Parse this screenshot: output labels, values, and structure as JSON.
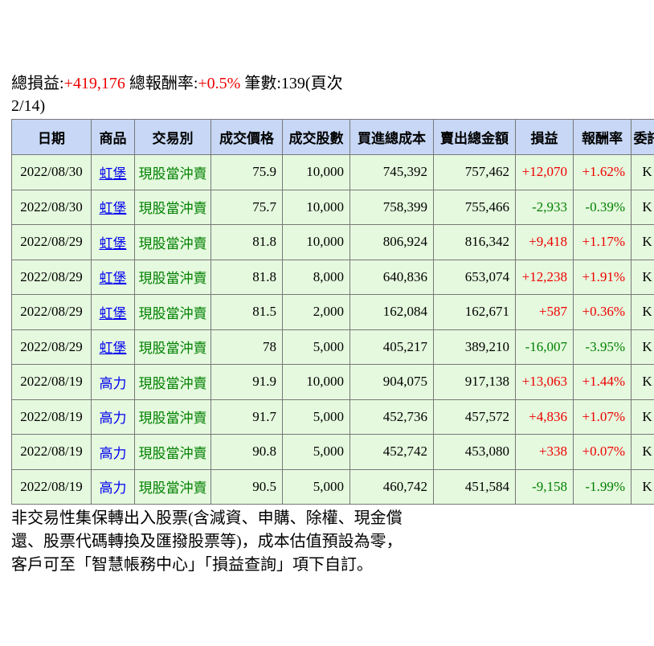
{
  "summary": {
    "label_pl": "總損益:",
    "value_pl": "+419,176",
    "label_ret": " 總報酬率:",
    "value_ret": "+0.5%",
    "label_count": " 筆數:139(頁次 2/14)"
  },
  "colors": {
    "positive": "#ee0000",
    "negative": "#008000",
    "link": "#0000ee",
    "header_bg": "#c7d7f5",
    "row_bg": "#e5f9de"
  },
  "table": {
    "columns": [
      "日期",
      "商品",
      "交易別",
      "成交價格",
      "成交股數",
      "買進總成本",
      "賣出總金額",
      "損益",
      "報酬率",
      "委託"
    ],
    "rows": [
      {
        "date": "2022/08/30",
        "product": "虹堡",
        "underline": true,
        "type": "現股當沖賣",
        "price": "75.9",
        "shares": "10,000",
        "cost": "745,392",
        "amount": "757,462",
        "pl": "+12,070",
        "ret": "+1.62%",
        "source": "K"
      },
      {
        "date": "2022/08/30",
        "product": "虹堡",
        "underline": true,
        "type": "現股當沖賣",
        "price": "75.7",
        "shares": "10,000",
        "cost": "758,399",
        "amount": "755,466",
        "pl": "-2,933",
        "ret": "-0.39%",
        "source": "K"
      },
      {
        "date": "2022/08/29",
        "product": "虹堡",
        "underline": true,
        "type": "現股當沖賣",
        "price": "81.8",
        "shares": "10,000",
        "cost": "806,924",
        "amount": "816,342",
        "pl": "+9,418",
        "ret": "+1.17%",
        "source": "K"
      },
      {
        "date": "2022/08/29",
        "product": "虹堡",
        "underline": true,
        "type": "現股當沖賣",
        "price": "81.8",
        "shares": "8,000",
        "cost": "640,836",
        "amount": "653,074",
        "pl": "+12,238",
        "ret": "+1.91%",
        "source": "K"
      },
      {
        "date": "2022/08/29",
        "product": "虹堡",
        "underline": true,
        "type": "現股當沖賣",
        "price": "81.5",
        "shares": "2,000",
        "cost": "162,084",
        "amount": "162,671",
        "pl": "+587",
        "ret": "+0.36%",
        "source": "K"
      },
      {
        "date": "2022/08/29",
        "product": "虹堡",
        "underline": true,
        "type": "現股當沖賣",
        "price": "78",
        "shares": "5,000",
        "cost": "405,217",
        "amount": "389,210",
        "pl": "-16,007",
        "ret": "-3.95%",
        "source": "K"
      },
      {
        "date": "2022/08/19",
        "product": "高力",
        "underline": false,
        "type": "現股當沖賣",
        "price": "91.9",
        "shares": "10,000",
        "cost": "904,075",
        "amount": "917,138",
        "pl": "+13,063",
        "ret": "+1.44%",
        "source": "K"
      },
      {
        "date": "2022/08/19",
        "product": "高力",
        "underline": false,
        "type": "現股當沖賣",
        "price": "91.7",
        "shares": "5,000",
        "cost": "452,736",
        "amount": "457,572",
        "pl": "+4,836",
        "ret": "+1.07%",
        "source": "K"
      },
      {
        "date": "2022/08/19",
        "product": "高力",
        "underline": false,
        "type": "現股當沖賣",
        "price": "90.8",
        "shares": "5,000",
        "cost": "452,742",
        "amount": "453,080",
        "pl": "+338",
        "ret": "+0.07%",
        "source": "K"
      },
      {
        "date": "2022/08/19",
        "product": "高力",
        "underline": false,
        "type": "現股當沖賣",
        "price": "90.5",
        "shares": "5,000",
        "cost": "460,742",
        "amount": "451,584",
        "pl": "-9,158",
        "ret": "-1.99%",
        "source": "K"
      }
    ]
  },
  "footer": {
    "lines": [
      "非交易性集保轉出入股票(含減資、申購、除權、現金償",
      "還、股票代碼轉換及匯撥股票等)，成本估值預設為零，",
      "客戶可至「智慧帳務中心」「損益查詢」項下自訂。"
    ]
  }
}
